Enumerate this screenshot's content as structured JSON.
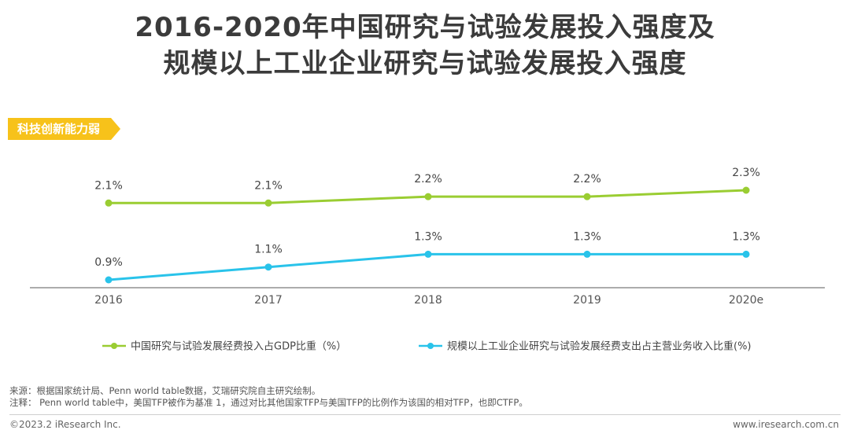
{
  "title": {
    "line1": "2016-2020年中国研究与试验发展投入强度及",
    "line2": "规模以上工业企业研究与试验发展投入强度"
  },
  "tag": "科技创新能力弱",
  "chart_data": {
    "type": "line",
    "categories": [
      "2016",
      "2017",
      "2018",
      "2019",
      "2020e"
    ],
    "series": [
      {
        "name": "中国研究与试验发展经费投入占GDP比重（%）",
        "values": [
          2.1,
          2.1,
          2.2,
          2.2,
          2.3
        ],
        "labels": [
          "2.1%",
          "2.1%",
          "2.2%",
          "2.2%",
          "2.3%"
        ],
        "color": "#9acd32"
      },
      {
        "name": "规模以上工业企业研究与试验发展经费支出占主营业务收入比重(%)",
        "values": [
          0.9,
          1.1,
          1.3,
          1.3,
          1.3
        ],
        "labels": [
          "0.9%",
          "1.1%",
          "1.3%",
          "1.3%",
          "1.3%"
        ],
        "color": "#29c3ea"
      }
    ],
    "xlabel": "",
    "ylabel": "",
    "grid": false,
    "legend": "bottom"
  },
  "notes": {
    "source": "来源：根据国家统计局、Penn world table数据，艾瑞研究院自主研究绘制。",
    "note": "注释： Penn world table中，美国TFP被作为基准 1，通过对比其他国家TFP与美国TFP的比例作为该国的相对TFP，也即CTFP。"
  },
  "footer": {
    "copyright": "©2023.2 iResearch Inc.",
    "website": "www.iresearch.com.cn"
  }
}
